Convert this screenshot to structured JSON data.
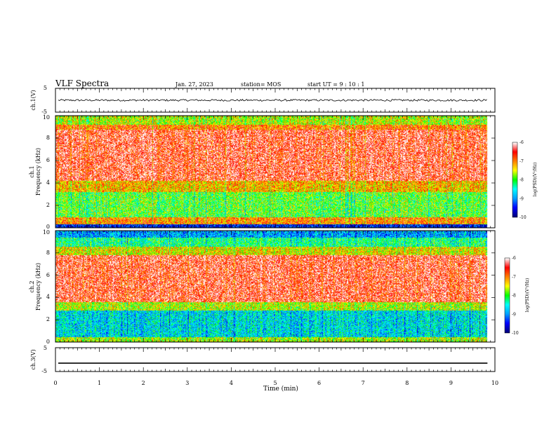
{
  "header": {
    "title": "VLF Spectra",
    "date": "Jan. 27, 2023",
    "station": "station= MOS",
    "start": "start  UT  =   9 : 10 : 1"
  },
  "chart_data": [
    {
      "type": "line",
      "panel": "ch1-waveform",
      "ylabel": "ch.1(V)",
      "ylim": [
        -5,
        5
      ],
      "yticks": [
        "5",
        "-5"
      ],
      "baseline_value": 0,
      "noise_amplitude": 0.4,
      "xlim": [
        0,
        10
      ]
    },
    {
      "type": "heatmap",
      "panel": "ch1-spectrogram",
      "ylabel": "ch.1\nFrequency (kHz)",
      "ylim": [
        0,
        10
      ],
      "yticks": [
        "0",
        "2",
        "4",
        "6",
        "8",
        "10"
      ],
      "xlim": [
        0,
        10
      ],
      "data_end_min": 9.83,
      "bands": [
        {
          "from_khz": 0,
          "to_khz": 0.3,
          "level": -9.5
        },
        {
          "from_khz": 0.3,
          "to_khz": 0.9,
          "level": -7.0
        },
        {
          "from_khz": 0.9,
          "to_khz": 3.2,
          "level": -7.9
        },
        {
          "from_khz": 3.2,
          "to_khz": 4.2,
          "level": -7.2
        },
        {
          "from_khz": 4.2,
          "to_khz": 8.8,
          "level": -6.4
        },
        {
          "from_khz": 8.8,
          "to_khz": 9.2,
          "level": -6.9
        },
        {
          "from_khz": 9.2,
          "to_khz": 10,
          "level": -7.6
        }
      ],
      "colorbar": {
        "label": "log(PSD)(V²/Hz)",
        "range": [
          -10,
          -6
        ],
        "ticks": [
          "-6",
          "-7",
          "-8",
          "-9",
          "-10"
        ]
      }
    },
    {
      "type": "heatmap",
      "panel": "ch2-spectrogram",
      "ylabel": "ch.2\nFrequency (kHz)",
      "ylim": [
        0,
        10
      ],
      "yticks": [
        "0",
        "2",
        "4",
        "6",
        "8",
        "10"
      ],
      "xlim": [
        0,
        10
      ],
      "data_end_min": 9.83,
      "bands": [
        {
          "from_khz": 0,
          "to_khz": 0.4,
          "level": -7.6
        },
        {
          "from_khz": 0.4,
          "to_khz": 2.8,
          "level": -8.6
        },
        {
          "from_khz": 2.8,
          "to_khz": 3.6,
          "level": -7.6
        },
        {
          "from_khz": 3.6,
          "to_khz": 7.8,
          "level": -6.4
        },
        {
          "from_khz": 7.8,
          "to_khz": 8.6,
          "level": -7.4
        },
        {
          "from_khz": 8.6,
          "to_khz": 9.4,
          "level": -8.2
        },
        {
          "from_khz": 9.4,
          "to_khz": 10,
          "level": -8.9
        }
      ],
      "colorbar": {
        "label": "log(PSD)(V²/Hz)",
        "range": [
          -10,
          -6
        ],
        "ticks": [
          "-6",
          "-7",
          "-8",
          "-9",
          "-10"
        ]
      }
    },
    {
      "type": "line",
      "panel": "ch3-waveform",
      "ylabel": "ch.3(V)",
      "ylim": [
        -5,
        5
      ],
      "yticks": [
        "5",
        "-5"
      ],
      "baseline_value": -1.5,
      "noise_amplitude": 0,
      "xlim": [
        0,
        10
      ],
      "xlabel": "Time (min)",
      "xticks": [
        "0",
        "1",
        "2",
        "3",
        "4",
        "5",
        "6",
        "7",
        "8",
        "9",
        "10"
      ]
    }
  ],
  "colors": {
    "scale": [
      "#00007a",
      "#0000ff",
      "#00a0ff",
      "#00ffff",
      "#00ff00",
      "#ffff00",
      "#ff8000",
      "#ff0000",
      "#ffffff"
    ]
  }
}
